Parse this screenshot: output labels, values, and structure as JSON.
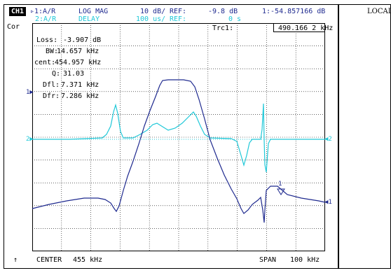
{
  "header": {
    "channel": "CH1",
    "line1": {
      "meas": "▹1:A/R",
      "format": "LOG MAG",
      "scale": "10 dB/",
      "ref_label": "REF:",
      "ref_value": "-9.8 dB",
      "marker": "1:-54.857166 dB"
    },
    "line2": {
      "meas": "2:A/R",
      "format": "DELAY",
      "scale": "100 us/",
      "ref_label": "REF:",
      "ref_value": "0 s"
    }
  },
  "side_label": "Cor",
  "right_panel": {
    "label": "LOCAL"
  },
  "trace_box": {
    "label": "Trc1:",
    "value": "490.166 2 kHz"
  },
  "stats": [
    {
      "label": "Loss:",
      "value": "-3.907 dB"
    },
    {
      "label": "BW:",
      "value": "14.657 kHz"
    },
    {
      "label": "cent:",
      "value": "454.957 kHz"
    },
    {
      "label": "Q:",
      "value": "31.03"
    },
    {
      "label": "Dfl:",
      "value": "7.371 kHz"
    },
    {
      "label": "Dfr:",
      "value": "7.286 kHz"
    }
  ],
  "ref_markers": {
    "ch1_left": "1▶",
    "ch2_left": "2▶",
    "ch2_right": "◀2",
    "ch1_right": "◀1",
    "marker_num": "1"
  },
  "footer": {
    "arrow": "↑",
    "center_label": "CENTER",
    "center_value": "455 kHz",
    "span_label": "SPAN",
    "span_value": "100 kHz"
  },
  "colors": {
    "trace1": "#1f2a8f",
    "trace2": "#20c8d8",
    "grid": "#000000"
  }
}
